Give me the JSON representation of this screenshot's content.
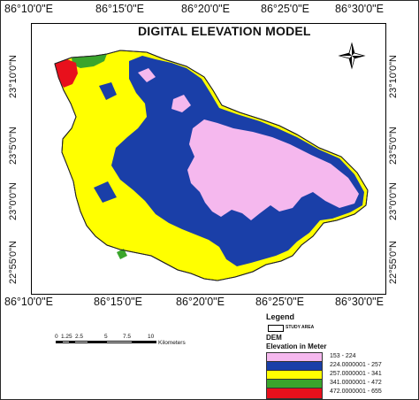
{
  "map": {
    "title": "DIGITAL ELEVATION MODEL",
    "top_labels": [
      "86°10'0\"E",
      "86°15'0\"E",
      "86°20'0\"E",
      "86°25'0\"E",
      "86°30'0\"E"
    ],
    "bottom_labels": [
      "86°10'0\"E",
      "86°15'0\"E",
      "86°20'0\"E",
      "86°25'0\"E",
      "86°30'0\"E"
    ],
    "left_labels": [
      "23°10'0\"N",
      "23°5'0\"N",
      "23°0'0\"N",
      "22°55'0\"N"
    ],
    "right_labels": [
      "23°10'0\"N",
      "23°5'0\"N",
      "23°0'0\"N",
      "22°55'0\"N"
    ],
    "colors": {
      "class1": "#f5b8ee",
      "class2": "#1a3fa8",
      "class3": "#ffff00",
      "class4": "#3aa52c",
      "class5": "#e8101c"
    },
    "compass_icon": "north-arrow-icon"
  },
  "scale": {
    "ticks": [
      "0",
      "1.25",
      "2.5",
      "5",
      "7.5",
      "10"
    ],
    "unit": "Kilometers"
  },
  "legend": {
    "title": "Legend",
    "study_area": "STUDY AREA",
    "dem_label": "DEM",
    "subtitle": "Elevation in Meter",
    "classes": [
      {
        "label": "153 - 224",
        "color": "#f5b8ee"
      },
      {
        "label": "224.0000001 - 257",
        "color": "#1a3fa8"
      },
      {
        "label": "257.0000001 - 341",
        "color": "#ffff00"
      },
      {
        "label": "341.0000001 - 472",
        "color": "#3aa52c"
      },
      {
        "label": "472.0000001 - 655",
        "color": "#e8101c"
      }
    ]
  }
}
